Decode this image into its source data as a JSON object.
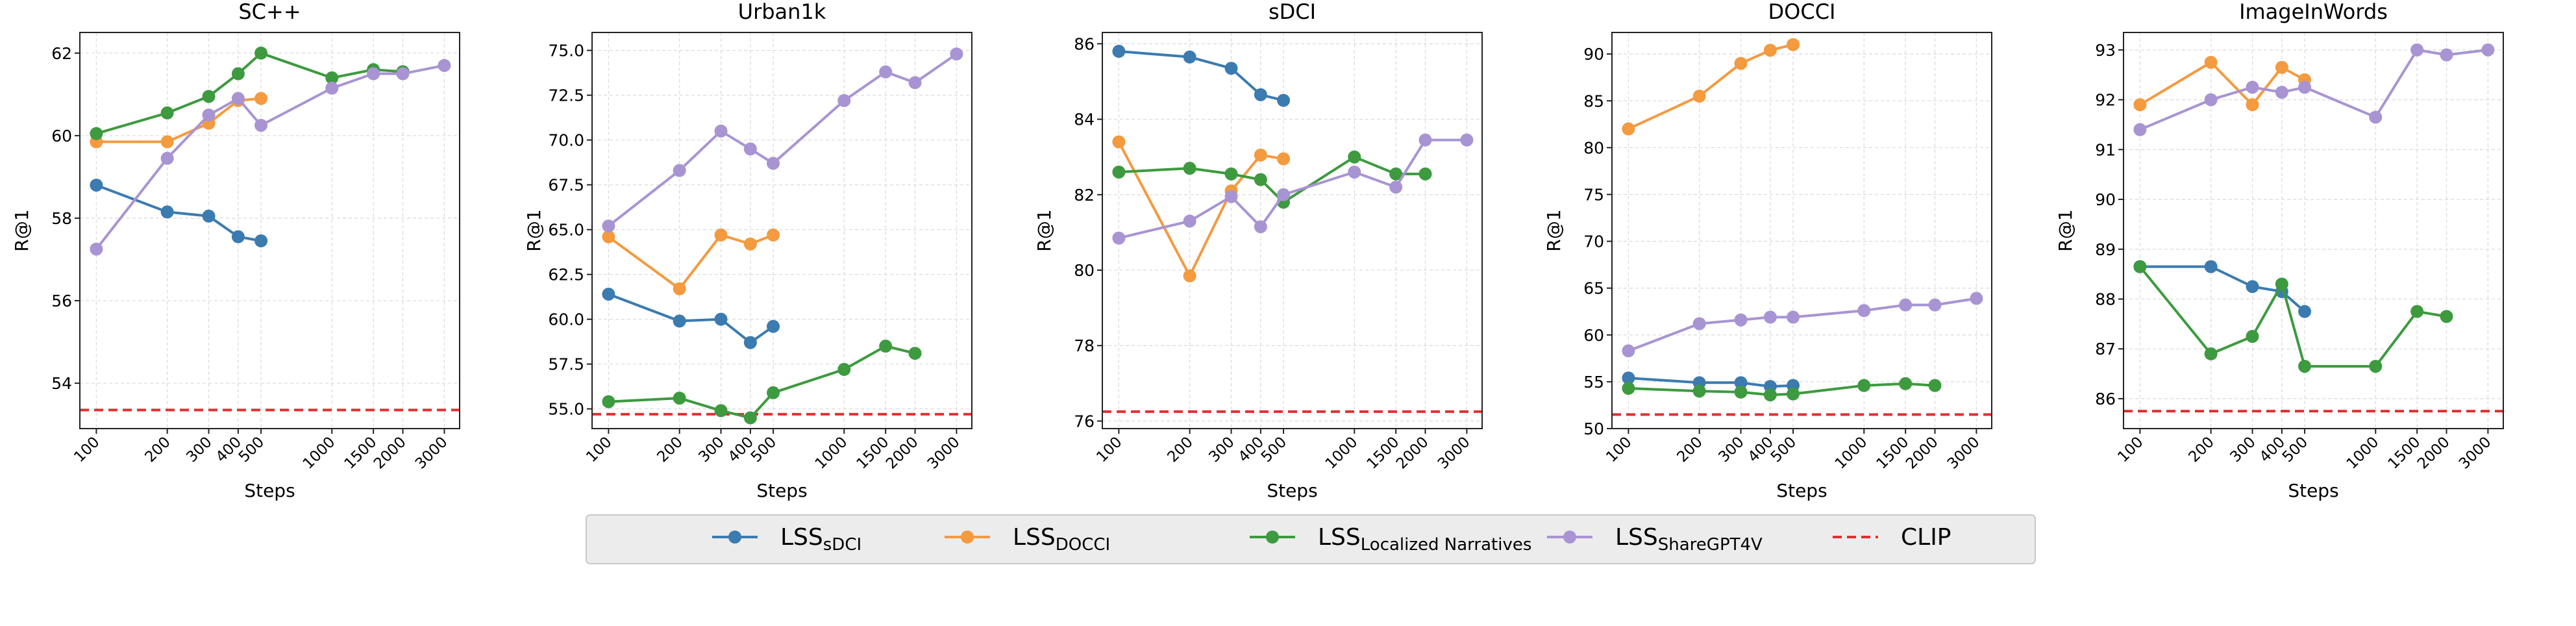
{
  "figure": {
    "series_styles": [
      {
        "key": "sDCI",
        "color": "#3b7bb0"
      },
      {
        "key": "DOCCI",
        "color": "#f49a3f"
      },
      {
        "key": "LN",
        "color": "#3d9a3f"
      },
      {
        "key": "ShareGPT4V",
        "color": "#a894d3"
      },
      {
        "key": "CLIP",
        "color": "#e03030"
      }
    ],
    "legend": [
      {
        "key": "sDCI",
        "main": "LSS",
        "sub": "sDCI"
      },
      {
        "key": "DOCCI",
        "main": "LSS",
        "sub": "DOCCI"
      },
      {
        "key": "LN",
        "main": "LSS",
        "sub": "Localized Narratives"
      },
      {
        "key": "ShareGPT4V",
        "main": "LSS",
        "sub": "ShareGPT4V"
      },
      {
        "key": "CLIP",
        "main": "CLIP",
        "sub": ""
      }
    ]
  },
  "chart_data": [
    {
      "type": "line",
      "title": "SC++",
      "xlabel": "Steps",
      "ylabel": "R@1",
      "xscale": "log",
      "xticks": [
        100,
        200,
        300,
        400,
        500,
        1000,
        1500,
        2000,
        3000
      ],
      "ylim": [
        52.9,
        62.5
      ],
      "yticks": [
        54,
        56,
        58,
        60,
        62
      ],
      "ytick_labels": [
        "54",
        "56",
        "58",
        "60",
        "62"
      ],
      "clip": 53.35,
      "series": [
        {
          "key": "sDCI",
          "name": "LSS sDCI",
          "x": [
            100,
            200,
            300,
            400,
            500
          ],
          "y": [
            58.8,
            58.15,
            58.05,
            57.55,
            57.45
          ]
        },
        {
          "key": "DOCCI",
          "name": "LSS DOCCI",
          "x": [
            100,
            200,
            300,
            400,
            500
          ],
          "y": [
            59.85,
            59.85,
            60.3,
            60.85,
            60.9
          ]
        },
        {
          "key": "LN",
          "name": "LSS Localized Narratives",
          "x": [
            100,
            200,
            300,
            400,
            500,
            1000,
            1500,
            2000
          ],
          "y": [
            60.05,
            60.55,
            60.95,
            61.5,
            62.0,
            61.4,
            61.6,
            61.55
          ]
        },
        {
          "key": "ShareGPT4V",
          "name": "LSS ShareGPT4V",
          "x": [
            100,
            200,
            300,
            400,
            500,
            1000,
            1500,
            2000,
            3000
          ],
          "y": [
            57.25,
            59.45,
            60.5,
            60.9,
            60.25,
            61.15,
            61.5,
            61.5,
            61.7
          ]
        }
      ]
    },
    {
      "type": "line",
      "title": "Urban1k",
      "xlabel": "Steps",
      "ylabel": "R@1",
      "xscale": "log",
      "xticks": [
        100,
        200,
        300,
        400,
        500,
        1000,
        1500,
        2000,
        3000
      ],
      "ylim": [
        53.9,
        76.0
      ],
      "yticks": [
        55.0,
        57.5,
        60.0,
        62.5,
        65.0,
        67.5,
        70.0,
        72.5,
        75.0
      ],
      "ytick_labels": [
        "55.0",
        "57.5",
        "60.0",
        "62.5",
        "65.0",
        "67.5",
        "70.0",
        "72.5",
        "75.0"
      ],
      "clip": 54.7,
      "series": [
        {
          "key": "sDCI",
          "name": "LSS sDCI",
          "x": [
            100,
            200,
            300,
            400,
            500
          ],
          "y": [
            61.4,
            59.9,
            60.0,
            58.7,
            59.6
          ]
        },
        {
          "key": "DOCCI",
          "name": "LSS DOCCI",
          "x": [
            100,
            200,
            300,
            400,
            500
          ],
          "y": [
            64.6,
            61.7,
            64.7,
            64.2,
            64.7
          ]
        },
        {
          "key": "LN",
          "name": "LSS Localized Narratives",
          "x": [
            100,
            200,
            300,
            400,
            500,
            1000,
            1500,
            2000
          ],
          "y": [
            55.4,
            55.6,
            54.9,
            54.5,
            55.9,
            57.2,
            58.5,
            58.1
          ]
        },
        {
          "key": "ShareGPT4V",
          "name": "LSS ShareGPT4V",
          "x": [
            100,
            200,
            300,
            400,
            500,
            1000,
            1500,
            2000,
            3000
          ],
          "y": [
            65.2,
            68.3,
            70.5,
            69.5,
            68.7,
            72.2,
            73.8,
            73.2,
            74.8
          ]
        }
      ]
    },
    {
      "type": "line",
      "title": "sDCI",
      "xlabel": "Steps",
      "ylabel": "R@1",
      "xscale": "log",
      "xticks": [
        100,
        200,
        300,
        400,
        500,
        1000,
        1500,
        2000,
        3000
      ],
      "ylim": [
        75.8,
        86.3
      ],
      "yticks": [
        76,
        78,
        80,
        82,
        84,
        86
      ],
      "ytick_labels": [
        "76",
        "78",
        "80",
        "82",
        "84",
        "86"
      ],
      "clip": 76.25,
      "series": [
        {
          "key": "sDCI",
          "name": "LSS sDCI",
          "x": [
            100,
            200,
            300,
            400,
            500
          ],
          "y": [
            85.8,
            85.65,
            85.35,
            84.65,
            84.5
          ]
        },
        {
          "key": "DOCCI",
          "name": "LSS DOCCI",
          "x": [
            100,
            200,
            300,
            400,
            500
          ],
          "y": [
            83.4,
            79.85,
            82.1,
            83.05,
            82.95
          ]
        },
        {
          "key": "LN",
          "name": "LSS Localized Narratives",
          "x": [
            100,
            200,
            300,
            400,
            500,
            1000,
            1500,
            2000
          ],
          "y": [
            82.6,
            82.7,
            82.55,
            82.4,
            81.8,
            83.0,
            82.55,
            82.55
          ]
        },
        {
          "key": "ShareGPT4V",
          "name": "LSS ShareGPT4V",
          "x": [
            100,
            200,
            300,
            400,
            500,
            1000,
            1500,
            2000,
            3000
          ],
          "y": [
            80.85,
            81.3,
            81.95,
            81.15,
            82.0,
            82.6,
            82.2,
            83.45,
            83.45
          ]
        }
      ]
    },
    {
      "type": "line",
      "title": "DOCCI",
      "xlabel": "Steps",
      "ylabel": "R@1",
      "xscale": "log",
      "xticks": [
        100,
        200,
        300,
        400,
        500,
        1000,
        1500,
        2000,
        3000
      ],
      "ylim": [
        50.0,
        92.3
      ],
      "yticks": [
        50,
        55,
        60,
        65,
        70,
        75,
        80,
        85,
        90
      ],
      "ytick_labels": [
        "50",
        "55",
        "60",
        "65",
        "70",
        "75",
        "80",
        "85",
        "90"
      ],
      "clip": 51.5,
      "series": [
        {
          "key": "sDCI",
          "name": "LSS sDCI",
          "x": [
            100,
            200,
            300,
            400,
            500
          ],
          "y": [
            55.4,
            54.9,
            54.9,
            54.5,
            54.6
          ]
        },
        {
          "key": "DOCCI",
          "name": "LSS DOCCI",
          "x": [
            100,
            200,
            300,
            400,
            500
          ],
          "y": [
            82.0,
            85.5,
            89.0,
            90.4,
            91.0
          ]
        },
        {
          "key": "LN",
          "name": "LSS Localized Narratives",
          "x": [
            100,
            200,
            300,
            400,
            500,
            1000,
            1500,
            2000
          ],
          "y": [
            54.3,
            54.0,
            53.9,
            53.6,
            53.7,
            54.6,
            54.8,
            54.6
          ]
        },
        {
          "key": "ShareGPT4V",
          "name": "LSS ShareGPT4V",
          "x": [
            100,
            200,
            300,
            400,
            500,
            1000,
            1500,
            2000,
            3000
          ],
          "y": [
            58.3,
            61.2,
            61.6,
            61.9,
            61.9,
            62.6,
            63.2,
            63.2,
            63.9
          ]
        }
      ]
    },
    {
      "type": "line",
      "title": "ImageInWords",
      "xlabel": "Steps",
      "ylabel": "R@1",
      "xscale": "log",
      "xticks": [
        100,
        200,
        300,
        400,
        500,
        1000,
        1500,
        2000,
        3000
      ],
      "ylim": [
        85.4,
        93.35
      ],
      "yticks": [
        86,
        87,
        88,
        89,
        90,
        91,
        92,
        93
      ],
      "ytick_labels": [
        "86",
        "87",
        "88",
        "89",
        "90",
        "91",
        "92",
        "93"
      ],
      "clip": 85.75,
      "series": [
        {
          "key": "sDCI",
          "name": "LSS sDCI",
          "x": [
            100,
            200,
            300,
            400,
            500
          ],
          "y": [
            88.65,
            88.65,
            88.25,
            88.15,
            87.75
          ]
        },
        {
          "key": "DOCCI",
          "name": "LSS DOCCI",
          "x": [
            100,
            200,
            300,
            400,
            500
          ],
          "y": [
            91.9,
            92.75,
            91.9,
            92.65,
            92.4
          ]
        },
        {
          "key": "LN",
          "name": "LSS Localized Narratives",
          "x": [
            100,
            200,
            300,
            400,
            500,
            1000,
            1500,
            2000
          ],
          "y": [
            88.65,
            86.9,
            87.25,
            88.3,
            86.65,
            86.65,
            87.75,
            87.65
          ]
        },
        {
          "key": "ShareGPT4V",
          "name": "LSS ShareGPT4V",
          "x": [
            100,
            200,
            300,
            400,
            500,
            1000,
            1500,
            2000,
            3000
          ],
          "y": [
            91.4,
            92.0,
            92.25,
            92.15,
            92.25,
            91.65,
            93.0,
            92.9,
            93.0
          ]
        }
      ]
    }
  ]
}
